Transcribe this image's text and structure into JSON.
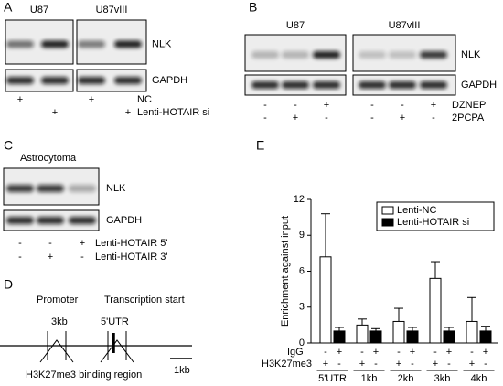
{
  "figure": {
    "panel_a": {
      "label": "A",
      "groups": [
        "U87",
        "U87vIII"
      ],
      "bands": [
        "NLK",
        "GAPDH"
      ],
      "rows": [
        {
          "name": "NC",
          "signs": [
            "+",
            null,
            "+",
            null
          ]
        },
        {
          "name": "Lenti-HOTAIR si",
          "signs": [
            null,
            "+",
            null,
            "+"
          ]
        }
      ]
    },
    "panel_b": {
      "label": "B",
      "groups": [
        "U87",
        "U87vIII"
      ],
      "bands": [
        "NLK",
        "GAPDH"
      ],
      "rows": [
        {
          "name": "DZNEP",
          "signs": [
            "-",
            "-",
            "+",
            "-",
            "-",
            "+"
          ]
        },
        {
          "name": "2PCPA",
          "signs": [
            "-",
            "+",
            "-",
            "-",
            "+",
            "-"
          ]
        }
      ]
    },
    "panel_c": {
      "label": "C",
      "groups": [
        "Astrocytoma"
      ],
      "bands": [
        "NLK",
        "GAPDH"
      ],
      "rows": [
        {
          "name": "Lenti-HOTAIR 5'",
          "signs": [
            "-",
            "-",
            "+"
          ]
        },
        {
          "name": "Lenti-HOTAIR 3'",
          "signs": [
            "-",
            "+",
            "-"
          ]
        }
      ]
    },
    "panel_d": {
      "label": "D",
      "promoter": "Promoter",
      "transcription_start": "Transcription start",
      "site_3kb": "3kb",
      "utr": "5'UTR",
      "region": "H3K27me3 binding region",
      "scale": "1kb"
    },
    "panel_e": {
      "label": "E"
    }
  },
  "chart_data": {
    "type": "bar",
    "ylabel": "Enrichment against input",
    "categories": [
      "5'UTR",
      "1kb",
      "2kb",
      "3kb",
      "4kb"
    ],
    "series": [
      {
        "name": "Lenti-NC",
        "color": "#ffffff",
        "values": [
          7.2,
          1.5,
          1.8,
          5.4,
          1.8
        ],
        "errors": [
          3.6,
          0.5,
          1.1,
          1.4,
          2.0
        ]
      },
      {
        "name": "Lenti-HOTAIR si",
        "color": "#000000",
        "values": [
          1.0,
          1.0,
          1.0,
          1.0,
          1.0
        ],
        "errors": [
          0.3,
          0.2,
          0.3,
          0.3,
          0.4
        ]
      }
    ],
    "rows": [
      {
        "name": "IgG",
        "signs": [
          "-",
          "+",
          "-",
          "+",
          "-",
          "+",
          "-",
          "+",
          "-",
          "+"
        ]
      },
      {
        "name": "H3K27me3",
        "signs": [
          "+",
          "-",
          "+",
          "-",
          "+",
          "-",
          "+",
          "-",
          "+",
          "-"
        ]
      }
    ],
    "ylim": [
      0,
      12
    ],
    "yticks": [
      0,
      3,
      6,
      9,
      12
    ],
    "legend": "upper right"
  }
}
